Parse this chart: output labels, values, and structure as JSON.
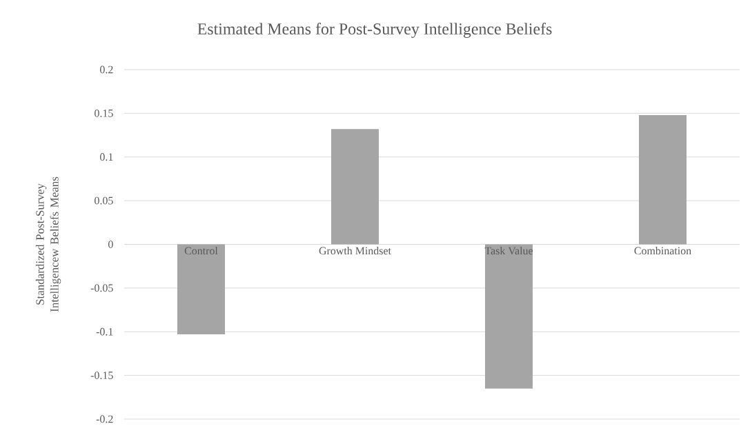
{
  "chart_data": {
    "type": "bar",
    "title": "Estimated Means for Post-Survey Intelligence Beliefs",
    "ylabel": "Standardized Post-Survey Intelligencew Beliefs Means",
    "categories": [
      "Control",
      "Growth Mindset",
      "Task Value",
      "Combination"
    ],
    "values": [
      -0.103,
      0.132,
      -0.165,
      0.148
    ],
    "color": "#a5a5a5",
    "ylim": [
      -0.2,
      0.2
    ],
    "yticks": [
      -0.2,
      -0.15,
      -0.1,
      -0.05,
      0,
      0.05,
      0.1,
      0.15,
      0.2
    ],
    "grid": "y"
  }
}
